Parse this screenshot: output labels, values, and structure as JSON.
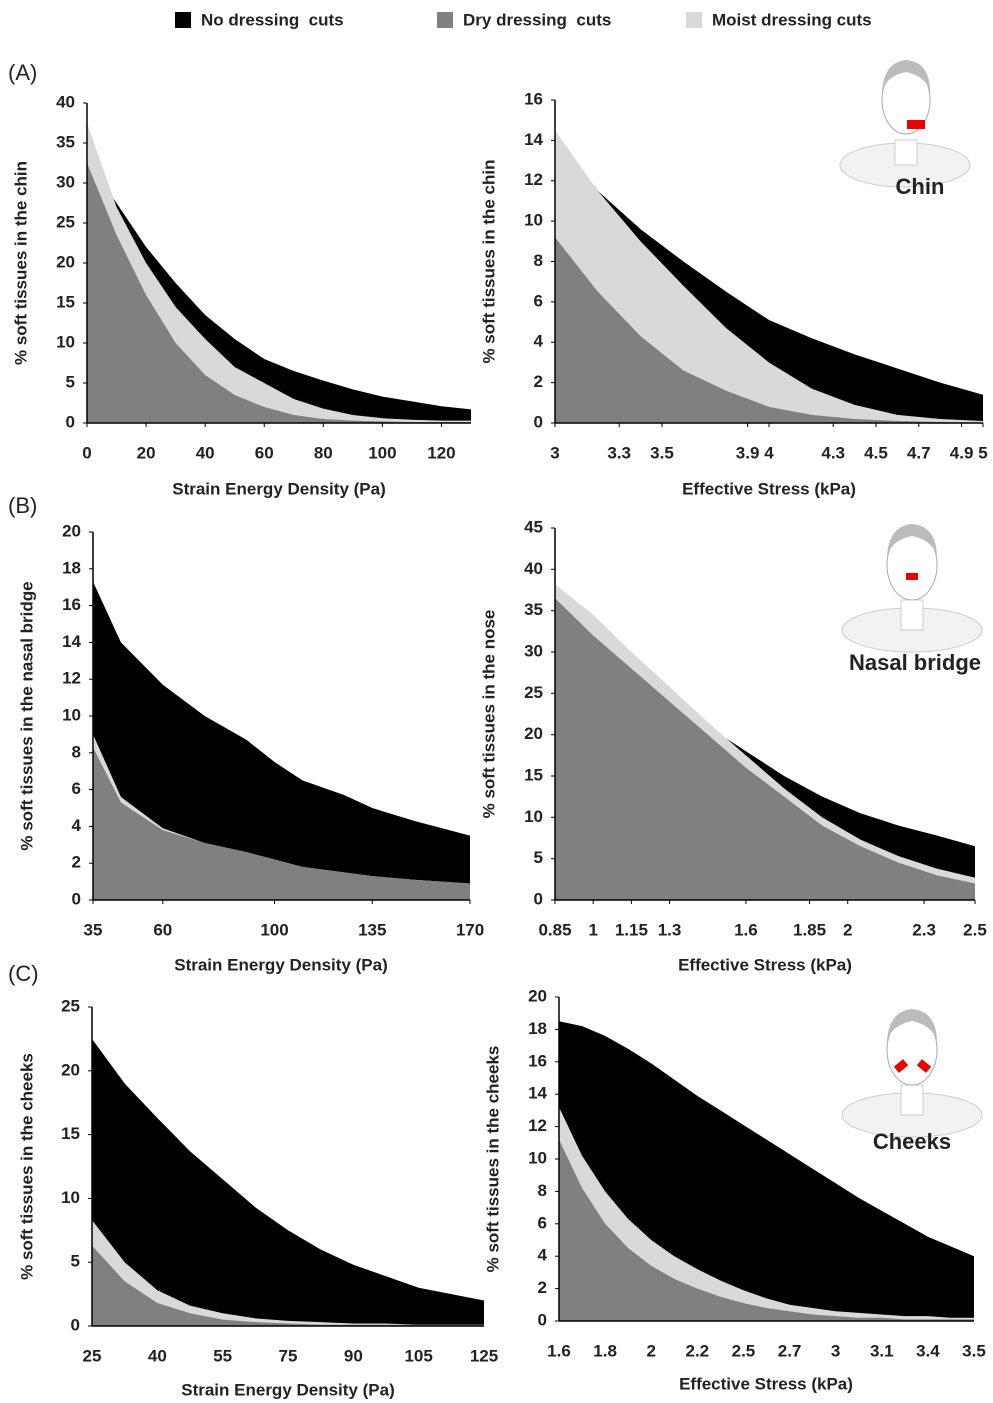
{
  "legend": [
    {
      "name": "No dressing  cuts",
      "color": "#000000"
    },
    {
      "name": "Dry dressing  cuts",
      "color": "#808080"
    },
    {
      "name": "Moist dressing cuts",
      "color": "#d9d9d9"
    }
  ],
  "panels": [
    "(A)",
    "(B)",
    "(C)"
  ],
  "sites": [
    "Chin",
    "Nasal bridge",
    "Cheeks"
  ],
  "chart_data": [
    {
      "type": "area",
      "x_label": "Strain Energy Density (Pa)",
      "y_label": "% soft tissues in the chin",
      "x": [
        0,
        10,
        20,
        30,
        40,
        50,
        60,
        70,
        80,
        90,
        100,
        110,
        120,
        130
      ],
      "xlim": [
        0,
        130
      ],
      "xticks": [
        0,
        20,
        40,
        60,
        80,
        100,
        120
      ],
      "ylim": [
        0,
        40
      ],
      "yticks": [
        0,
        5,
        10,
        15,
        20,
        25,
        30,
        35,
        40
      ],
      "series": [
        {
          "values": [
            33,
            27.5,
            22,
            17.5,
            13.5,
            10.5,
            8,
            6.5,
            5.3,
            4.2,
            3.3,
            2.7,
            2.1,
            1.7
          ]
        },
        {
          "values": [
            32.5,
            23.5,
            16,
            10,
            6,
            3.5,
            2,
            1,
            0.5,
            0.3,
            0.2,
            0.1,
            0.1,
            0.1
          ]
        },
        {
          "values": [
            37.5,
            27,
            20,
            14.5,
            10.5,
            7,
            5,
            3,
            1.8,
            1,
            0.6,
            0.4,
            0.3,
            0.3
          ]
        }
      ]
    },
    {
      "type": "area",
      "x_label": "Effective Stress (kPa)",
      "y_label": "% soft tissues in the chin",
      "x": [
        3,
        3.2,
        3.4,
        3.6,
        3.8,
        4,
        4.2,
        4.4,
        4.6,
        4.8,
        5
      ],
      "xlim": [
        3,
        5
      ],
      "xticks": [
        3,
        3.3,
        3.5,
        3.9,
        4,
        4.3,
        4.5,
        4.7,
        4.9,
        5
      ],
      "ylim": [
        0,
        16
      ],
      "yticks": [
        0,
        2,
        4,
        6,
        8,
        10,
        12,
        14,
        16
      ],
      "series": [
        {
          "values": [
            14.3,
            11.5,
            9.6,
            8,
            6.5,
            5.1,
            4.2,
            3.4,
            2.7,
            2,
            1.4
          ]
        },
        {
          "values": [
            9.2,
            6.5,
            4.3,
            2.6,
            1.6,
            0.8,
            0.4,
            0.2,
            0.1,
            0.05,
            0
          ]
        },
        {
          "values": [
            14.5,
            11.5,
            9,
            6.8,
            4.7,
            3,
            1.7,
            0.9,
            0.4,
            0.2,
            0.1
          ]
        }
      ]
    },
    {
      "type": "area",
      "x_label": "Strain Energy Density (Pa)",
      "y_label": "% soft tissues in the nasal bridge",
      "x": [
        35,
        45,
        60,
        75,
        90,
        100,
        110,
        125,
        135,
        150,
        170
      ],
      "xlim": [
        35,
        170
      ],
      "xticks": [
        35,
        60,
        100,
        135,
        170
      ],
      "ylim": [
        0,
        20
      ],
      "yticks": [
        0,
        2,
        4,
        6,
        8,
        10,
        12,
        14,
        16,
        18,
        20
      ],
      "series": [
        {
          "values": [
            17.3,
            14,
            11.7,
            10,
            8.7,
            7.5,
            6.5,
            5.7,
            5,
            4.3,
            3.5
          ]
        },
        {
          "values": [
            8.3,
            5.3,
            3.8,
            3.1,
            2.6,
            2.2,
            1.8,
            1.5,
            1.3,
            1.1,
            0.9
          ]
        },
        {
          "values": [
            9,
            5.6,
            3.9,
            3.1,
            2.6,
            2.2,
            1.8,
            1.5,
            1.3,
            1.1,
            0.9
          ]
        }
      ]
    },
    {
      "type": "area",
      "x_label": "Effective Stress (kPa)",
      "y_label": "% soft tissues in the nose",
      "x": [
        0.85,
        1,
        1.15,
        1.3,
        1.45,
        1.6,
        1.75,
        1.9,
        2.05,
        2.2,
        2.35,
        2.5
      ],
      "xlim": [
        0.85,
        2.5
      ],
      "xticks": [
        0.85,
        1,
        1.15,
        1.3,
        1.6,
        1.85,
        2,
        2.3,
        2.5
      ],
      "ylim": [
        0,
        45
      ],
      "yticks": [
        0,
        5,
        10,
        15,
        20,
        25,
        30,
        35,
        40,
        45
      ],
      "series": [
        {
          "values": [
            37,
            33,
            29,
            25,
            21,
            18,
            15,
            12.5,
            10.5,
            9,
            7.8,
            6.5
          ]
        },
        {
          "values": [
            36.5,
            32,
            28,
            24,
            20,
            16,
            12.5,
            9,
            6.5,
            4.5,
            3,
            2
          ]
        },
        {
          "values": [
            38.2,
            34.5,
            30,
            25.8,
            21.5,
            17.5,
            13.5,
            10,
            7.3,
            5.3,
            3.8,
            2.7
          ]
        }
      ]
    },
    {
      "type": "area",
      "x_label": "Strain Energy Density (Pa)",
      "y_label": "% soft tissues in the cheeks",
      "categories": [
        "25",
        null,
        "40",
        null,
        "55",
        null,
        "75",
        null,
        "90",
        null,
        "105",
        null,
        "125"
      ],
      "ylim": [
        0,
        25
      ],
      "yticks": [
        0,
        5,
        10,
        15,
        20,
        25
      ],
      "series": [
        {
          "values": [
            22.5,
            19,
            16.3,
            13.7,
            11.5,
            9.3,
            7.5,
            6,
            4.8,
            3.9,
            3,
            2.5,
            2
          ]
        },
        {
          "values": [
            6.3,
            3.5,
            1.8,
            1,
            0.5,
            0.3,
            0.2,
            0.1,
            0.1,
            0.1,
            0.1,
            0.1,
            0.1
          ]
        },
        {
          "values": [
            8.3,
            5,
            2.8,
            1.6,
            1,
            0.6,
            0.4,
            0.3,
            0.2,
            0.2,
            0.1,
            0.1,
            0.1
          ]
        }
      ]
    },
    {
      "type": "area",
      "x_label": "Effective Stress (kPa)",
      "y_label": "% soft tissues in the cheeks",
      "categories": [
        "1.6",
        null,
        "1.8",
        null,
        "2",
        null,
        "2.2",
        null,
        "2.5",
        null,
        "2.7",
        null,
        "3",
        null,
        "3.1",
        null,
        "3.4",
        null,
        "3.5"
      ],
      "ylim": [
        0,
        20
      ],
      "yticks": [
        0,
        2,
        4,
        6,
        8,
        10,
        12,
        14,
        16,
        18,
        20
      ],
      "series": [
        {
          "values": [
            18.5,
            18.2,
            17.6,
            16.8,
            15.9,
            14.9,
            13.9,
            13,
            12.1,
            11.2,
            10.3,
            9.4,
            8.5,
            7.6,
            6.8,
            6,
            5.2,
            4.6,
            4
          ]
        },
        {
          "values": [
            11.2,
            8.2,
            6,
            4.5,
            3.4,
            2.6,
            2,
            1.5,
            1.1,
            0.8,
            0.6,
            0.4,
            0.3,
            0.2,
            0.2,
            0.1,
            0.1,
            0.1,
            0.1
          ]
        },
        {
          "values": [
            13.2,
            10.2,
            8,
            6.3,
            5,
            4,
            3.2,
            2.5,
            1.9,
            1.4,
            1,
            0.8,
            0.6,
            0.5,
            0.4,
            0.3,
            0.3,
            0.2,
            0.2
          ]
        }
      ]
    }
  ]
}
